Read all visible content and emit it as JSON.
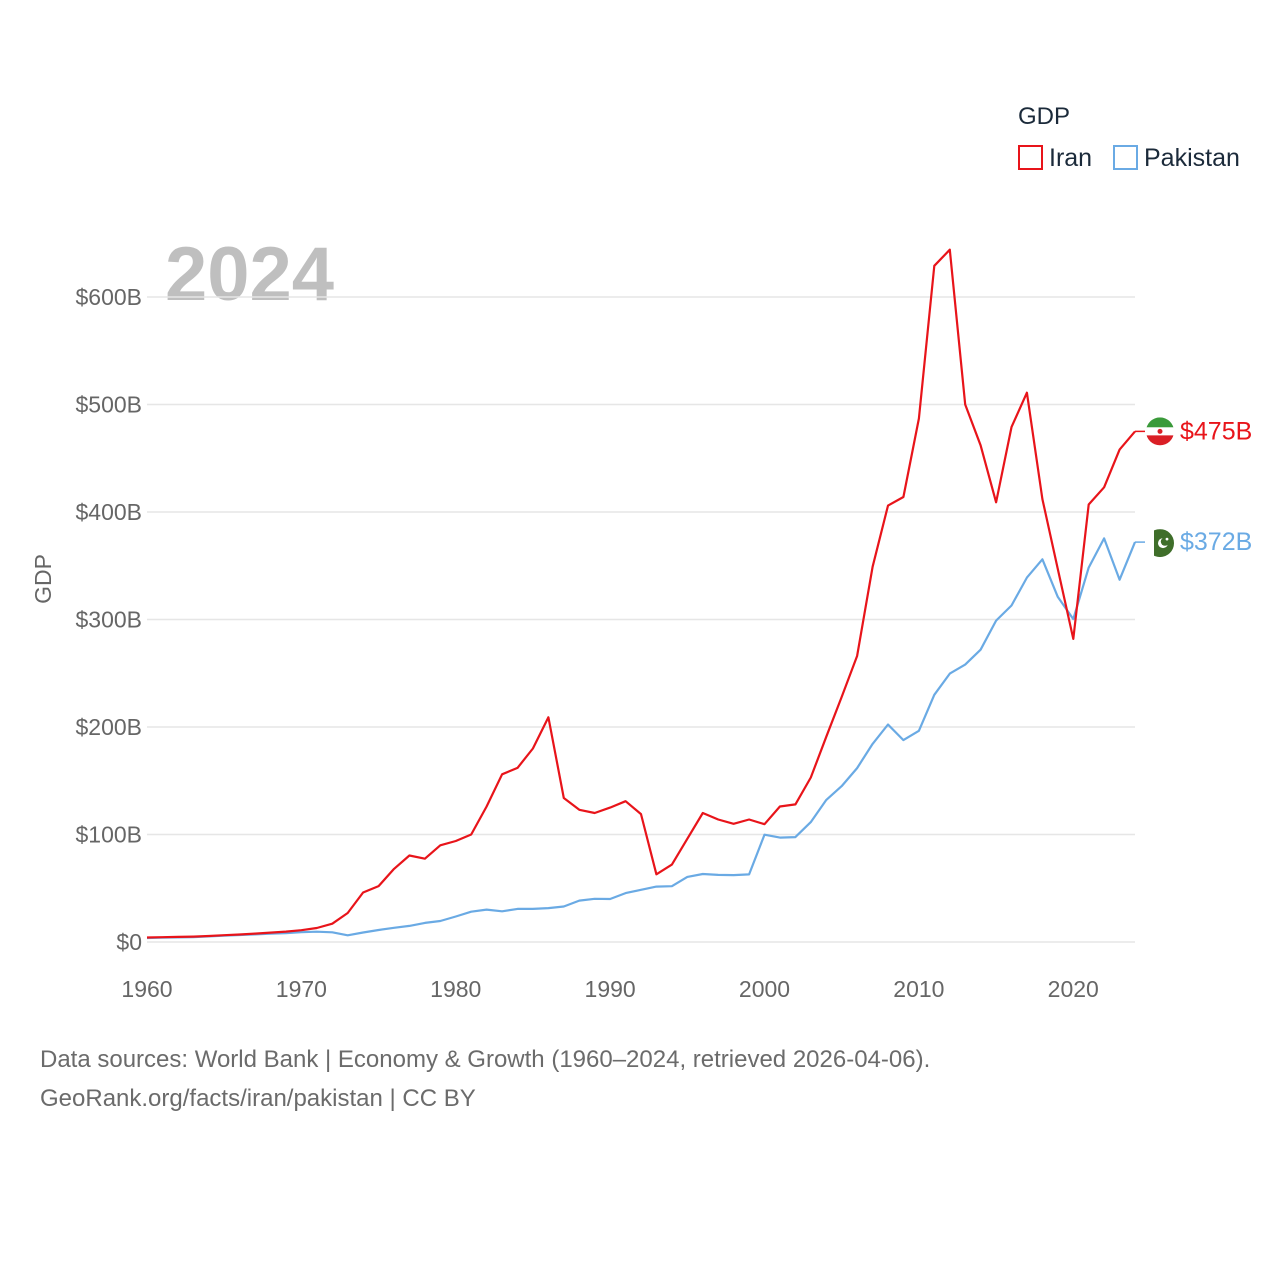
{
  "chart_data": {
    "type": "line",
    "title": "GDP",
    "watermark_year": "2024",
    "xlabel": "",
    "ylabel": "GDP",
    "xlim": [
      1960,
      2024
    ],
    "ylim": [
      0,
      650
    ],
    "x_ticks": [
      1960,
      1970,
      1980,
      1990,
      2000,
      2010,
      2020
    ],
    "x_tick_labels": [
      "1960",
      "1970",
      "1980",
      "1990",
      "2000",
      "2010",
      "2020"
    ],
    "y_ticks": [
      0,
      100,
      200,
      300,
      400,
      500,
      600
    ],
    "y_tick_labels": [
      "$0",
      "$100B",
      "$200B",
      "$300B",
      "$400B",
      "$500B",
      "$600B"
    ],
    "legend_position": "top-right",
    "x": [
      1960,
      1961,
      1962,
      1963,
      1964,
      1965,
      1966,
      1967,
      1968,
      1969,
      1970,
      1971,
      1972,
      1973,
      1974,
      1975,
      1976,
      1977,
      1978,
      1979,
      1980,
      1981,
      1982,
      1983,
      1984,
      1985,
      1986,
      1987,
      1988,
      1989,
      1990,
      1991,
      1992,
      1993,
      1994,
      1995,
      1996,
      1997,
      1998,
      1999,
      2000,
      2001,
      2002,
      2003,
      2004,
      2005,
      2006,
      2007,
      2008,
      2009,
      2010,
      2011,
      2012,
      2013,
      2014,
      2015,
      2016,
      2017,
      2018,
      2019,
      2020,
      2021,
      2022,
      2023,
      2024
    ],
    "series": [
      {
        "name": "Iran",
        "color": "#e8141a",
        "end_label": "$475B",
        "flag": "iran-flag-icon",
        "values": [
          4.2,
          4.5,
          4.7,
          5.0,
          5.6,
          6.3,
          7.0,
          7.8,
          8.7,
          9.7,
          11.0,
          13.0,
          17.0,
          27.0,
          46.0,
          52.0,
          68.0,
          80.5,
          77.5,
          90.0,
          94.0,
          100.0,
          126.0,
          156.0,
          162.0,
          180.0,
          209.0,
          134.0,
          123.0,
          120.0,
          125.0,
          131.0,
          119.0,
          63.0,
          72.0,
          96.0,
          120.0,
          114.0,
          110.0,
          114.0,
          109.6,
          126.0,
          128.0,
          153.0,
          191.0,
          228.0,
          266.0,
          349.0,
          406.0,
          414.0,
          487.0,
          629.0,
          644.0,
          500.0,
          462.0,
          409.0,
          479.0,
          511.0,
          412.0,
          347.0,
          282.0,
          407.0,
          423.0,
          458.0,
          475.0
        ]
      },
      {
        "name": "Pakistan",
        "color": "#6aaae4",
        "end_label": "$372B",
        "flag": "pakistan-flag-icon",
        "values": [
          3.7,
          4.1,
          4.3,
          4.6,
          5.2,
          5.9,
          6.5,
          7.1,
          7.7,
          8.3,
          9.1,
          9.6,
          9.0,
          6.2,
          8.8,
          11.2,
          13.2,
          15.0,
          17.8,
          19.5,
          23.7,
          28.2,
          30.1,
          28.6,
          30.8,
          30.8,
          31.5,
          33.0,
          38.5,
          40.2,
          40.0,
          45.5,
          48.6,
          51.5,
          51.9,
          60.6,
          63.3,
          62.4,
          62.2,
          62.9,
          99.8,
          97.1,
          97.6,
          111.5,
          132.2,
          145.0,
          161.8,
          184.3,
          202.3,
          187.8,
          196.5,
          230.0,
          249.7,
          258.0,
          271.9,
          299.0,
          313.0,
          339.0,
          356.0,
          321.0,
          300.4,
          348.3,
          375.4,
          337.0,
          372.0
        ]
      }
    ],
    "caption_line1": "Data sources: World Bank | Economy & Growth (1960–2024, retrieved 2026-04-06).",
    "caption_line2": "GeoRank.org/facts/iran/pakistan | CC BY"
  }
}
